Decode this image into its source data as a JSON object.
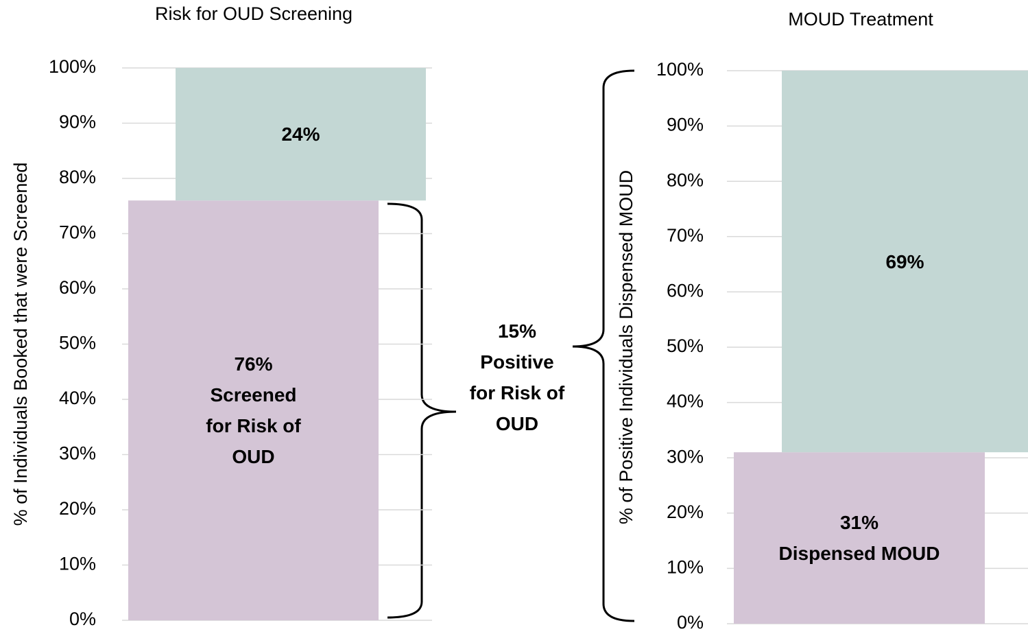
{
  "chart_data": [
    {
      "type": "stacked-bar",
      "title": "Risk for OUD Screening",
      "y_label": "% of Individuals Booked that were Screened",
      "series": [
        {
          "name": "Screened for Risk of OUD",
          "color": "#d4c5d6",
          "values": [
            76
          ],
          "value_labels": [
            "76%"
          ]
        },
        {
          "color": "#c3d7d4",
          "values": [
            24
          ],
          "value_labels": [
            "24%"
          ]
        }
      ],
      "ylim": [
        0,
        100
      ],
      "yticks": [
        {
          "value": 0,
          "label": "0%"
        },
        {
          "value": 10,
          "label": "10%"
        },
        {
          "value": 20,
          "label": "20%"
        },
        {
          "value": 30,
          "label": "30%"
        },
        {
          "value": 40,
          "label": "40%"
        },
        {
          "value": 50,
          "label": "50%"
        },
        {
          "value": 60,
          "label": "60%"
        },
        {
          "value": 70,
          "label": "70%"
        },
        {
          "value": 80,
          "label": "80%"
        },
        {
          "value": 90,
          "label": "90%"
        },
        {
          "value": 100,
          "label": "100%"
        }
      ],
      "grid": true
    },
    {
      "type": "stacked-bar",
      "title": "MOUD Treatment",
      "y_label": "% of Positive Individuals Dispensed MOUD",
      "series": [
        {
          "name": "Dispensed MOUD",
          "color": "#d4c5d6",
          "values": [
            31
          ],
          "value_labels": [
            "31%"
          ]
        },
        {
          "color": "#c3d7d4",
          "values": [
            69
          ],
          "value_labels": [
            "69%"
          ]
        }
      ],
      "ylim": [
        0,
        100
      ],
      "yticks": [
        {
          "value": 0,
          "label": "0%"
        },
        {
          "value": 10,
          "label": "10%"
        },
        {
          "value": 20,
          "label": "20%"
        },
        {
          "value": 30,
          "label": "30%"
        },
        {
          "value": 40,
          "label": "40%"
        },
        {
          "value": 50,
          "label": "50%"
        },
        {
          "value": 60,
          "label": "60%"
        },
        {
          "value": 70,
          "label": "70%"
        },
        {
          "value": 80,
          "label": "80%"
        },
        {
          "value": 90,
          "label": "90%"
        },
        {
          "value": 100,
          "label": "100%"
        }
      ],
      "grid": true
    }
  ],
  "annotation": "15% Positive for Risk of OUD"
}
